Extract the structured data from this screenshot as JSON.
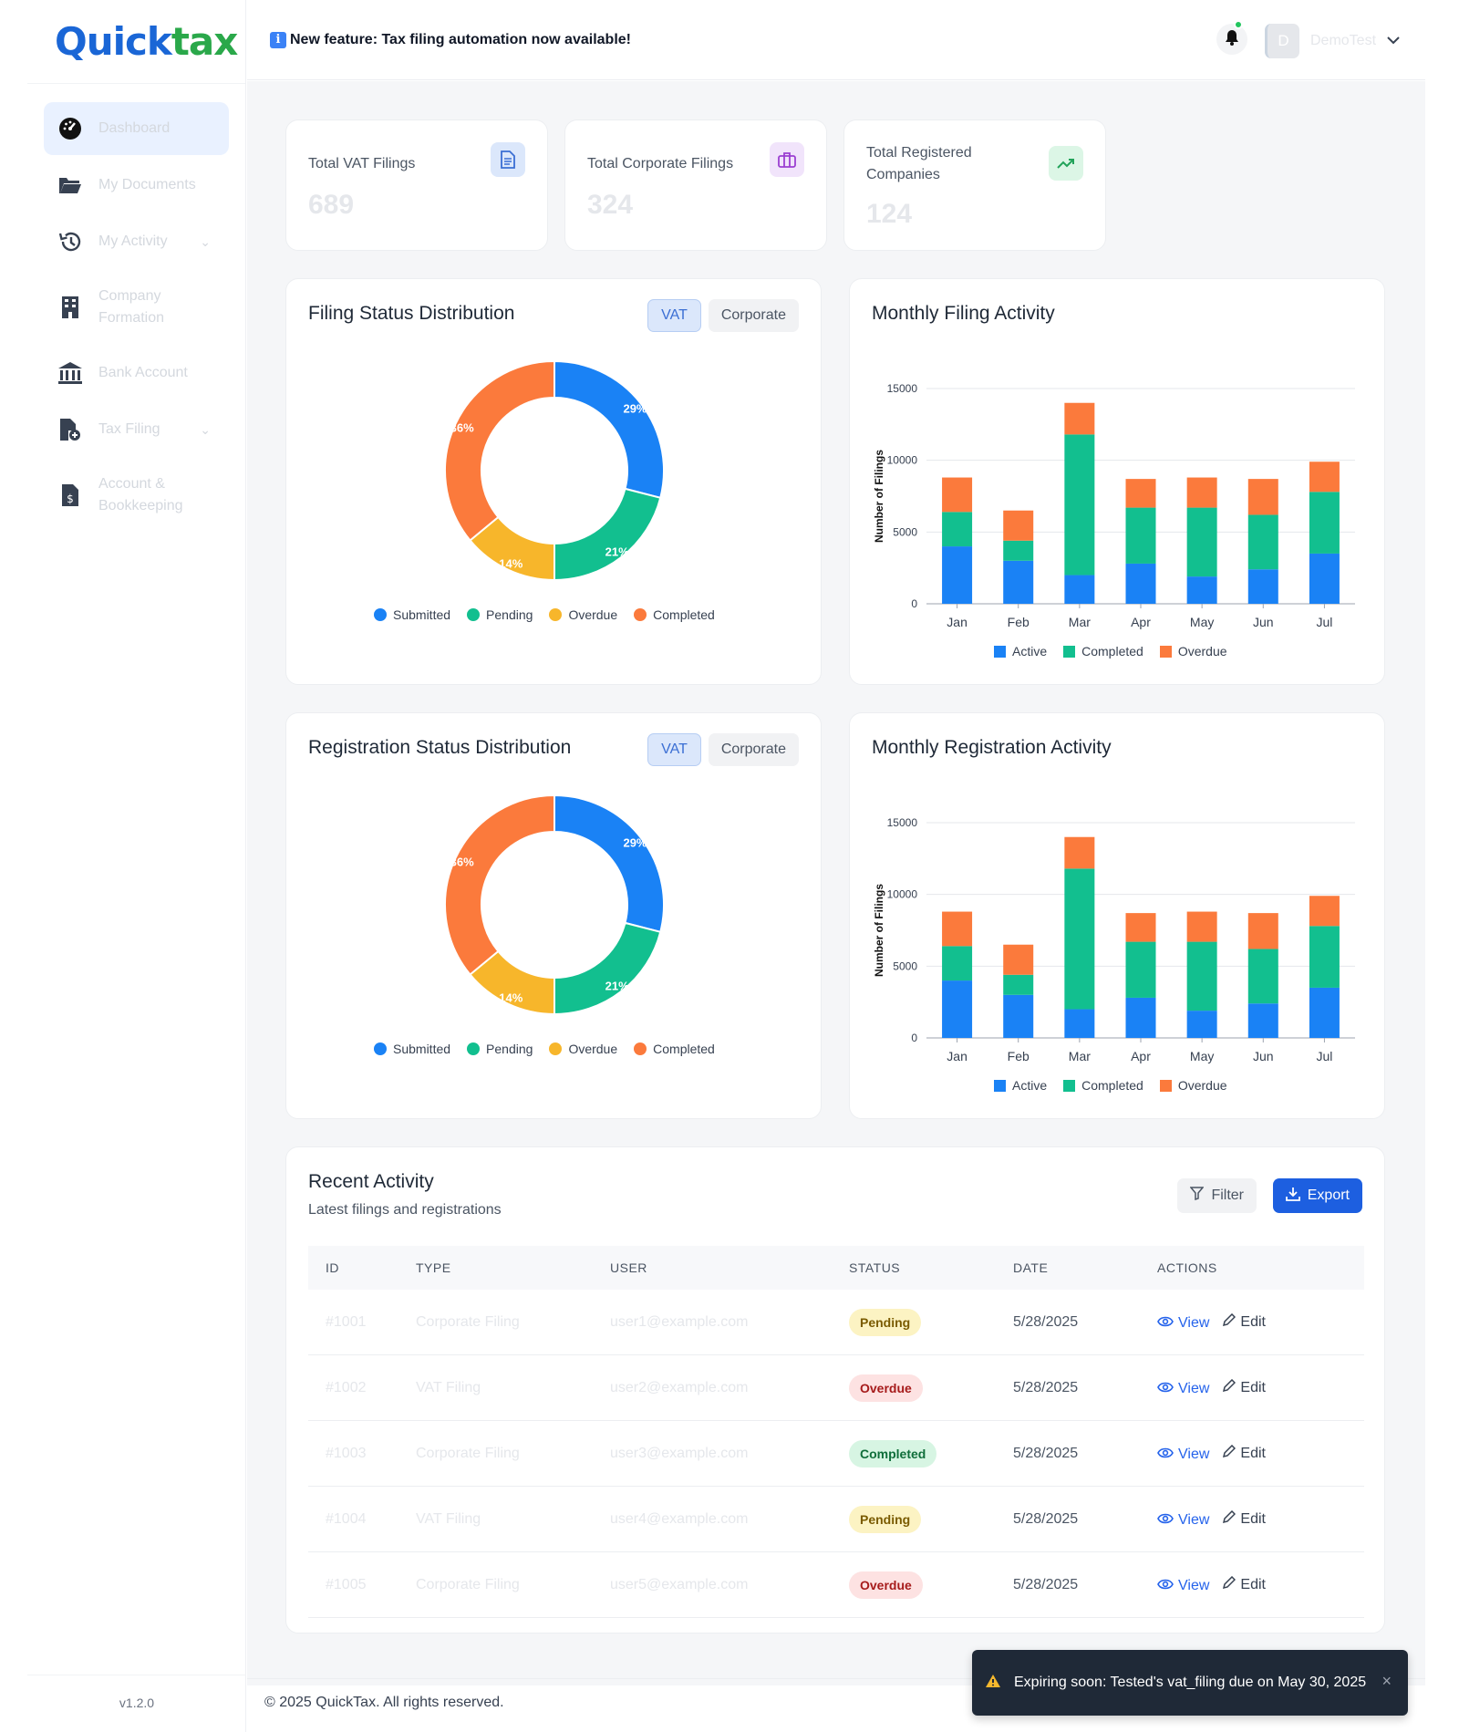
{
  "brand": {
    "logo_part1": "Qu",
    "logo_part2": "ick",
    "logo_part3": "tax"
  },
  "sidebar": {
    "items": [
      {
        "label": "Dashboard",
        "icon": "dashboard-gauge-icon",
        "active": true
      },
      {
        "label": "My Documents",
        "icon": "folder-open-icon"
      },
      {
        "label": "My Activity",
        "icon": "history-icon",
        "has_children": true
      },
      {
        "label": "Company Formation",
        "icon": "building-icon"
      },
      {
        "label": "Bank Account",
        "icon": "bank-icon"
      },
      {
        "label": "Tax Filing",
        "icon": "file-plus-icon",
        "has_children": true
      },
      {
        "label": "Account & Bookkeeping",
        "icon": "invoice-dollar-icon"
      }
    ],
    "version": "v1.2.0"
  },
  "header": {
    "announcement_icon": "i",
    "announcement": "New feature: Tax filing automation now available!",
    "user_initial": "D",
    "user_name": "DemoTest"
  },
  "stats": [
    {
      "title": "Total VAT Filings",
      "value": "689",
      "icon": "document-icon",
      "icon_bg": "#dbe7fb",
      "icon_color": "#3b6fd4"
    },
    {
      "title": "Total Corporate Filings",
      "value": "324",
      "icon": "briefcase-icon",
      "icon_bg": "#f1e4fb",
      "icon_color": "#9b3fd1"
    },
    {
      "title": "Total Registered Companies",
      "value": "124",
      "icon": "trending-up-icon",
      "icon_bg": "#dcf6e6",
      "icon_color": "#22a35a"
    }
  ],
  "charts": {
    "filing_status": {
      "title": "Filing Status Distribution",
      "toggle": [
        "VAT",
        "Corporate"
      ]
    },
    "monthly_filing": {
      "title": "Monthly Filing Activity"
    },
    "registration_status": {
      "title": "Registration Status Distribution",
      "toggle": [
        "VAT",
        "Corporate"
      ]
    },
    "monthly_registration": {
      "title": "Monthly Registration Activity"
    }
  },
  "chart_data": [
    {
      "type": "pie",
      "title": "Filing Status Distribution",
      "donut": true,
      "labels": [
        "Submitted",
        "Pending",
        "Overdue",
        "Completed"
      ],
      "values": [
        29,
        21,
        14,
        36
      ],
      "value_labels": [
        "29%",
        "21%",
        "14%",
        "36%"
      ],
      "colors": [
        "#1a82f5",
        "#12bf8f",
        "#f7b62b",
        "#fb7a3c"
      ],
      "legend": "bottom"
    },
    {
      "type": "bar",
      "stacked": true,
      "title": "Monthly Filing Activity",
      "ylabel": "Number of Filings",
      "categories": [
        "Jan",
        "Feb",
        "Mar",
        "Apr",
        "May",
        "Jun",
        "Jul"
      ],
      "series": [
        {
          "name": "Active",
          "color": "#1a82f5",
          "values": [
            4000,
            3000,
            2000,
            2800,
            1900,
            2400,
            3500
          ]
        },
        {
          "name": "Completed",
          "color": "#12bf8f",
          "values": [
            2400,
            1400,
            9800,
            3900,
            4800,
            3800,
            4300
          ]
        },
        {
          "name": "Overdue",
          "color": "#fb7a3c",
          "values": [
            2400,
            2100,
            2200,
            2000,
            2100,
            2500,
            2100
          ]
        }
      ],
      "ylim": [
        0,
        15000
      ],
      "yticks": [
        0,
        5000,
        10000,
        15000
      ],
      "legend": "bottom",
      "grid": true
    },
    {
      "type": "pie",
      "title": "Registration Status Distribution",
      "donut": true,
      "labels": [
        "Submitted",
        "Pending",
        "Overdue",
        "Completed"
      ],
      "values": [
        29,
        21,
        14,
        36
      ],
      "value_labels": [
        "29%",
        "21%",
        "14%",
        "36%"
      ],
      "colors": [
        "#1a82f5",
        "#12bf8f",
        "#f7b62b",
        "#fb7a3c"
      ],
      "legend": "bottom"
    },
    {
      "type": "bar",
      "stacked": true,
      "title": "Monthly Registration Activity",
      "ylabel": "Number of Filings",
      "categories": [
        "Jan",
        "Feb",
        "Mar",
        "Apr",
        "May",
        "Jun",
        "Jul"
      ],
      "series": [
        {
          "name": "Active",
          "color": "#1a82f5",
          "values": [
            4000,
            3000,
            2000,
            2800,
            1900,
            2400,
            3500
          ]
        },
        {
          "name": "Completed",
          "color": "#12bf8f",
          "values": [
            2400,
            1400,
            9800,
            3900,
            4800,
            3800,
            4300
          ]
        },
        {
          "name": "Overdue",
          "color": "#fb7a3c",
          "values": [
            2400,
            2100,
            2200,
            2000,
            2100,
            2500,
            2100
          ]
        }
      ],
      "ylim": [
        0,
        15000
      ],
      "yticks": [
        0,
        5000,
        10000,
        15000
      ],
      "legend": "bottom",
      "grid": true
    }
  ],
  "activity": {
    "title": "Recent Activity",
    "subtitle": "Latest filings and registrations",
    "filter_label": "Filter",
    "export_label": "Export",
    "columns": [
      "ID",
      "TYPE",
      "USER",
      "STATUS",
      "DATE",
      "ACTIONS"
    ],
    "view_label": "View",
    "edit_label": "Edit",
    "rows": [
      {
        "id": "#1001",
        "type": "Corporate Filing",
        "user": "user1@example.com",
        "status": "Pending",
        "date": "5/28/2025"
      },
      {
        "id": "#1002",
        "type": "VAT Filing",
        "user": "user2@example.com",
        "status": "Overdue",
        "date": "5/28/2025"
      },
      {
        "id": "#1003",
        "type": "Corporate Filing",
        "user": "user3@example.com",
        "status": "Completed",
        "date": "5/28/2025"
      },
      {
        "id": "#1004",
        "type": "VAT Filing",
        "user": "user4@example.com",
        "status": "Pending",
        "date": "5/28/2025"
      },
      {
        "id": "#1005",
        "type": "Corporate Filing",
        "user": "user5@example.com",
        "status": "Overdue",
        "date": "5/28/2025"
      }
    ]
  },
  "footer": {
    "copyright": "© 2025 QuickTax. All rights reserved."
  },
  "toast": {
    "icon": "warning-icon",
    "message": "Expiring soon: Tested's vat_filing due on May 30, 2025",
    "close": "×"
  }
}
